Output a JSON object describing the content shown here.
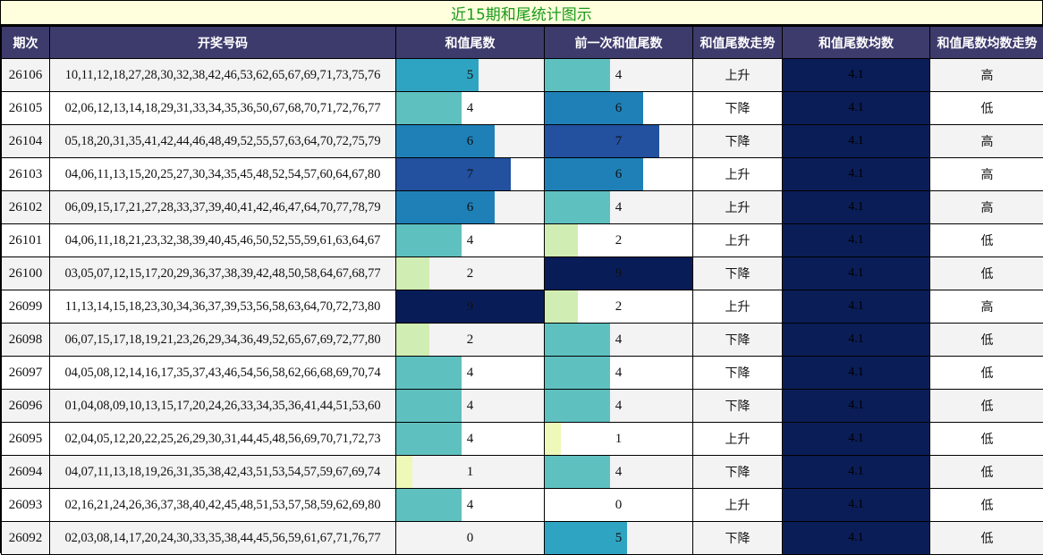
{
  "title": "近15期和尾统计图示",
  "headers": [
    "期次",
    "开奖号码",
    "和值尾数",
    "前一次和值尾数",
    "和值尾数走势",
    "和值尾数均数",
    "和值尾数均数走势"
  ],
  "bar_max": 9,
  "bar_colors": {
    "0": "transparent",
    "1": "#edf8b9",
    "2": "#d0edb3",
    "3": "#a2dab9",
    "4": "#5fc0c0",
    "5": "#2fa4c2",
    "6": "#1f80b8",
    "7": "#23509f",
    "8": "#1b3585",
    "9": "#081d58"
  },
  "rows": [
    {
      "period": "26106",
      "numbers": "10,11,12,18,27,28,30,32,38,42,46,53,62,65,67,69,71,73,75,76",
      "tail": 5,
      "prev_tail": 4,
      "trend": "上升",
      "avg": "4.1",
      "avg_trend": "高"
    },
    {
      "period": "26105",
      "numbers": "02,06,12,13,14,18,29,31,33,34,35,36,50,67,68,70,71,72,76,77",
      "tail": 4,
      "prev_tail": 6,
      "trend": "下降",
      "avg": "4.1",
      "avg_trend": "低"
    },
    {
      "period": "26104",
      "numbers": "05,18,20,31,35,41,42,44,46,48,49,52,55,57,63,64,70,72,75,79",
      "tail": 6,
      "prev_tail": 7,
      "trend": "下降",
      "avg": "4.1",
      "avg_trend": "高"
    },
    {
      "period": "26103",
      "numbers": "04,06,11,13,15,20,25,27,30,34,35,45,48,52,54,57,60,64,67,80",
      "tail": 7,
      "prev_tail": 6,
      "trend": "上升",
      "avg": "4.1",
      "avg_trend": "高"
    },
    {
      "period": "26102",
      "numbers": "06,09,15,17,21,27,28,33,37,39,40,41,42,46,47,64,70,77,78,79",
      "tail": 6,
      "prev_tail": 4,
      "trend": "上升",
      "avg": "4.1",
      "avg_trend": "高"
    },
    {
      "period": "26101",
      "numbers": "04,06,11,18,21,23,32,38,39,40,45,46,50,52,55,59,61,63,64,67",
      "tail": 4,
      "prev_tail": 2,
      "trend": "上升",
      "avg": "4.1",
      "avg_trend": "低"
    },
    {
      "period": "26100",
      "numbers": "03,05,07,12,15,17,20,29,36,37,38,39,42,48,50,58,64,67,68,77",
      "tail": 2,
      "prev_tail": 9,
      "trend": "下降",
      "avg": "4.1",
      "avg_trend": "低"
    },
    {
      "period": "26099",
      "numbers": "11,13,14,15,18,23,30,34,36,37,39,53,56,58,63,64,70,72,73,80",
      "tail": 9,
      "prev_tail": 2,
      "trend": "上升",
      "avg": "4.1",
      "avg_trend": "高"
    },
    {
      "period": "26098",
      "numbers": "06,07,15,17,18,19,21,23,26,29,34,36,49,52,65,67,69,72,77,80",
      "tail": 2,
      "prev_tail": 4,
      "trend": "下降",
      "avg": "4.1",
      "avg_trend": "低"
    },
    {
      "period": "26097",
      "numbers": "04,05,08,12,14,16,17,35,37,43,46,54,56,58,62,66,68,69,70,74",
      "tail": 4,
      "prev_tail": 4,
      "trend": "下降",
      "avg": "4.1",
      "avg_trend": "低"
    },
    {
      "period": "26096",
      "numbers": "01,04,08,09,10,13,15,17,20,24,26,33,34,35,36,41,44,51,53,60",
      "tail": 4,
      "prev_tail": 4,
      "trend": "下降",
      "avg": "4.1",
      "avg_trend": "低"
    },
    {
      "period": "26095",
      "numbers": "02,04,05,12,20,22,25,26,29,30,31,44,45,48,56,69,70,71,72,73",
      "tail": 4,
      "prev_tail": 1,
      "trend": "上升",
      "avg": "4.1",
      "avg_trend": "低"
    },
    {
      "period": "26094",
      "numbers": "04,07,11,13,18,19,26,31,35,38,42,43,51,53,54,57,59,67,69,74",
      "tail": 1,
      "prev_tail": 4,
      "trend": "下降",
      "avg": "4.1",
      "avg_trend": "低"
    },
    {
      "period": "26093",
      "numbers": "02,16,21,24,26,36,37,38,40,42,45,48,51,53,57,58,59,62,69,80",
      "tail": 4,
      "prev_tail": 0,
      "trend": "上升",
      "avg": "4.1",
      "avg_trend": "低"
    },
    {
      "period": "26092",
      "numbers": "02,03,08,14,17,20,24,30,33,35,38,44,45,56,59,61,67,71,76,77",
      "tail": 0,
      "prev_tail": 5,
      "trend": "下降",
      "avg": "4.1",
      "avg_trend": "低"
    }
  ]
}
